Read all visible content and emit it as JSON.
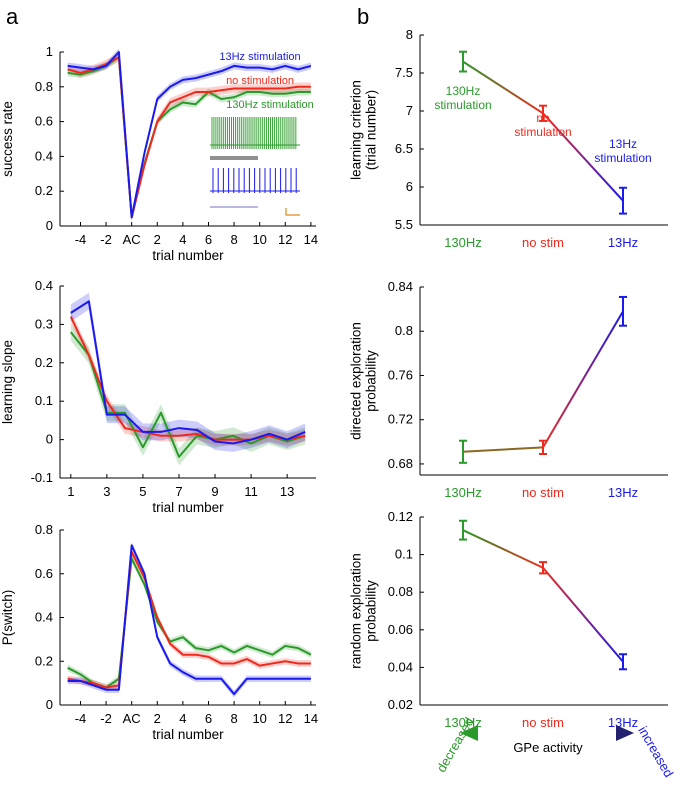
{
  "panel_labels": {
    "a": "a",
    "b": "b"
  },
  "colors": {
    "s130": "#2a9a2a",
    "nostim": "#ee2a1d",
    "s13": "#1a1aee",
    "axis": "#000000",
    "grey": "#909090",
    "navy": "#22226e",
    "orange": "#e08a1a"
  },
  "inset": {
    "top_trace": "green-spike-train-icon",
    "bottom_trace": "blue-spike-train-icon",
    "scale_bar": "scale-bar-icon"
  },
  "arrow": {
    "left_label": "decreased",
    "right_label": "increased",
    "center_label": "GPe activity"
  },
  "chart_data": [
    {
      "id": "a1",
      "type": "line",
      "xlabel": "trial number",
      "ylabel": "success rate",
      "x": [
        -5,
        -4,
        -3,
        -2,
        -1,
        0,
        1,
        2,
        3,
        4,
        5,
        6,
        7,
        8,
        9,
        10,
        11,
        12,
        13,
        14
      ],
      "xlim": [
        -5.6,
        14.4
      ],
      "ylim": [
        0,
        1
      ],
      "xticks": [
        -4,
        -2,
        0,
        2,
        4,
        6,
        8,
        10,
        12,
        14
      ],
      "xticklabels": [
        "-4",
        "-2",
        "AC",
        "2",
        "4",
        "6",
        "8",
        "10",
        "12",
        "14"
      ],
      "yticks": [
        0,
        0.2,
        0.4,
        0.6,
        0.8,
        1
      ],
      "yticklabels": [
        "0",
        "0.2",
        "0.4",
        "0.6",
        "0.8",
        "1"
      ],
      "series": [
        {
          "key": "s130",
          "name": "130Hz stimulation",
          "values": [
            0.88,
            0.87,
            0.89,
            0.92,
            0.97,
            0.05,
            0.36,
            0.6,
            0.67,
            0.71,
            0.7,
            0.77,
            0.73,
            0.74,
            0.77,
            0.77,
            0.76,
            0.76,
            0.77,
            0.77
          ],
          "band": 0.02
        },
        {
          "key": "nostim",
          "name": "no stimulation",
          "values": [
            0.9,
            0.88,
            0.9,
            0.93,
            0.97,
            0.05,
            0.35,
            0.6,
            0.71,
            0.74,
            0.77,
            0.77,
            0.78,
            0.79,
            0.79,
            0.79,
            0.79,
            0.79,
            0.8,
            0.8
          ],
          "band": 0.025
        },
        {
          "key": "s13",
          "name": "13Hz stimulation",
          "values": [
            0.92,
            0.91,
            0.9,
            0.92,
            1.0,
            0.05,
            0.42,
            0.73,
            0.8,
            0.84,
            0.85,
            0.87,
            0.89,
            0.92,
            0.91,
            0.91,
            0.9,
            0.92,
            0.9,
            0.92
          ],
          "band": 0.02
        }
      ],
      "legend": [
        {
          "key": "s13",
          "text": "13Hz stimulation"
        },
        {
          "key": "nostim",
          "text": "no stimulation"
        },
        {
          "key": "s130",
          "text": "130Hz stimulation"
        }
      ]
    },
    {
      "id": "a2",
      "type": "line",
      "xlabel": "trial number",
      "ylabel": "learning slope",
      "x": [
        1,
        2,
        3,
        4,
        5,
        6,
        7,
        8,
        9,
        10,
        11,
        12,
        13,
        14
      ],
      "xlim": [
        0.4,
        14.6
      ],
      "ylim": [
        -0.1,
        0.4
      ],
      "xticks": [
        1,
        3,
        5,
        7,
        9,
        11,
        13
      ],
      "xticklabels": [
        "1",
        "3",
        "5",
        "7",
        "9",
        "11",
        "13"
      ],
      "yticks": [
        -0.1,
        0,
        0.1,
        0.2,
        0.3,
        0.4
      ],
      "yticklabels": [
        "-0.1",
        "0",
        "0.1",
        "0.2",
        "0.3",
        "0.4"
      ],
      "series": [
        {
          "key": "s130",
          "name": "130Hz stimulation",
          "values": [
            0.28,
            0.22,
            0.07,
            0.07,
            -0.02,
            0.07,
            -0.045,
            0.01,
            0.0,
            0.01,
            -0.01,
            0.01,
            -0.005,
            0.01
          ],
          "band": 0.022
        },
        {
          "key": "nostim",
          "name": "no stimulation",
          "values": [
            0.32,
            0.22,
            0.1,
            0.03,
            0.02,
            0.01,
            0.01,
            0.015,
            0.0,
            0.0,
            0.0,
            0.01,
            0.0,
            0.01
          ],
          "band": 0.015
        },
        {
          "key": "s13",
          "name": "13Hz stimulation",
          "values": [
            0.33,
            0.36,
            0.065,
            0.065,
            0.02,
            0.02,
            0.03,
            0.025,
            -0.005,
            -0.01,
            0.0,
            0.015,
            0.0,
            0.02
          ],
          "band": 0.022
        }
      ]
    },
    {
      "id": "a3",
      "type": "line",
      "xlabel": "trial number",
      "ylabel": "P(switch)",
      "x": [
        -5,
        -4,
        -3,
        -2,
        -1,
        0,
        1,
        2,
        3,
        4,
        5,
        6,
        7,
        8,
        9,
        10,
        11,
        12,
        13,
        14
      ],
      "xlim": [
        -5.6,
        14.4
      ],
      "ylim": [
        0,
        0.8
      ],
      "xticks": [
        -4,
        -2,
        0,
        2,
        4,
        6,
        8,
        10,
        12,
        14
      ],
      "xticklabels": [
        "-4",
        "-2",
        "AC",
        "2",
        "4",
        "6",
        "8",
        "10",
        "12",
        "14"
      ],
      "yticks": [
        0,
        0.2,
        0.4,
        0.6,
        0.8
      ],
      "yticklabels": [
        "0",
        "0.2",
        "0.4",
        "0.6",
        "0.8"
      ],
      "series": [
        {
          "key": "s130",
          "name": "130Hz stimulation",
          "values": [
            0.17,
            0.14,
            0.1,
            0.08,
            0.12,
            0.67,
            0.55,
            0.38,
            0.29,
            0.31,
            0.26,
            0.25,
            0.27,
            0.24,
            0.27,
            0.25,
            0.23,
            0.27,
            0.26,
            0.23
          ],
          "band": 0.015
        },
        {
          "key": "nostim",
          "name": "no stimulation",
          "values": [
            0.12,
            0.11,
            0.1,
            0.08,
            0.09,
            0.7,
            0.58,
            0.4,
            0.28,
            0.23,
            0.23,
            0.22,
            0.19,
            0.19,
            0.21,
            0.18,
            0.19,
            0.2,
            0.19,
            0.19
          ],
          "band": 0.015
        },
        {
          "key": "s13",
          "name": "13Hz stimulation",
          "values": [
            0.11,
            0.11,
            0.09,
            0.07,
            0.07,
            0.73,
            0.6,
            0.31,
            0.19,
            0.15,
            0.12,
            0.12,
            0.12,
            0.05,
            0.12,
            0.12,
            0.12,
            0.12,
            0.12,
            0.12
          ],
          "band": 0.015
        }
      ]
    },
    {
      "id": "b1",
      "type": "line",
      "ylabel": "learning criterion (trial number)",
      "categories": [
        "130Hz",
        "no stim",
        "13Hz"
      ],
      "category_keys": [
        "s130",
        "nostim",
        "s13"
      ],
      "values": [
        7.65,
        6.97,
        5.82
      ],
      "errors": [
        0.13,
        0.1,
        0.17
      ],
      "ylim": [
        5.5,
        8
      ],
      "yticks": [
        5.5,
        6,
        6.5,
        7,
        7.5,
        8
      ],
      "yticklabels": [
        "5.5",
        "6",
        "6.5",
        "7",
        "7.5",
        "8"
      ],
      "annotations": [
        {
          "key": "s130",
          "lines": [
            "130Hz",
            "stimulation"
          ]
        },
        {
          "key": "nostim",
          "lines": [
            "no",
            "stimulation"
          ]
        },
        {
          "key": "s13",
          "lines": [
            "13Hz",
            "stimulation"
          ]
        }
      ]
    },
    {
      "id": "b2",
      "type": "line",
      "ylabel": "directed exploration probability",
      "categories": [
        "130Hz",
        "no stim",
        "13Hz"
      ],
      "category_keys": [
        "s130",
        "nostim",
        "s13"
      ],
      "values": [
        0.691,
        0.695,
        0.818
      ],
      "errors": [
        0.01,
        0.006,
        0.013
      ],
      "ylim": [
        0.67,
        0.84
      ],
      "yticks": [
        0.68,
        0.72,
        0.76,
        0.8,
        0.84
      ],
      "yticklabels": [
        "0.68",
        "0.72",
        "0.76",
        "0.8",
        "0.84"
      ]
    },
    {
      "id": "b3",
      "type": "line",
      "ylabel": "random exploration probability",
      "categories": [
        "130Hz",
        "no stim",
        "13Hz"
      ],
      "category_keys": [
        "s130",
        "nostim",
        "s13"
      ],
      "values": [
        0.113,
        0.093,
        0.043
      ],
      "errors": [
        0.005,
        0.003,
        0.004
      ],
      "ylim": [
        0.02,
        0.12
      ],
      "yticks": [
        0.02,
        0.04,
        0.06,
        0.08,
        0.1,
        0.12
      ],
      "yticklabels": [
        "0.02",
        "0.04",
        "0.06",
        "0.08",
        "0.1",
        "0.12"
      ]
    }
  ]
}
